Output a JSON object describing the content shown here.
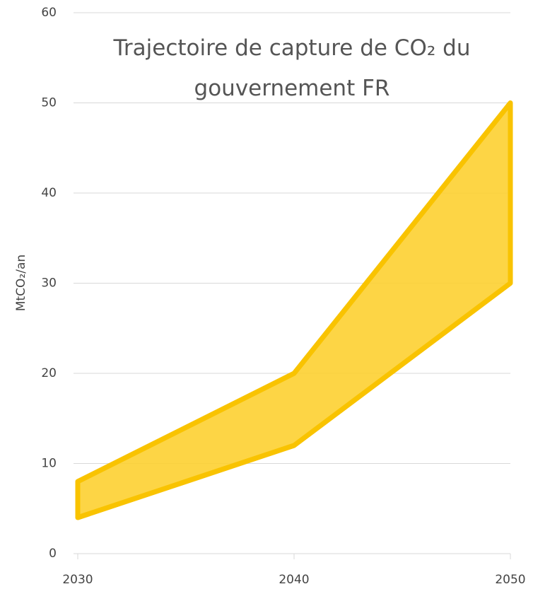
{
  "chart_data": {
    "type": "range-area",
    "title": "Trajectoire de capture de CO₂ du gouvernement FR",
    "y_label": "MtCO₂/an",
    "x": [
      2030,
      2040,
      2050
    ],
    "series": [
      {
        "color": "#f9c300",
        "values": [
          8,
          20,
          50
        ]
      },
      {
        "color": "#f9c300",
        "values": [
          4,
          12,
          30
        ]
      }
    ],
    "fill": "#fdd031",
    "xlim": [
      2030,
      2050
    ],
    "xticks": [
      2030,
      2040,
      2050
    ],
    "ylim": [
      0,
      60
    ],
    "yticks": [
      0,
      10,
      20,
      30,
      40,
      50,
      60
    ],
    "grid": true
  }
}
